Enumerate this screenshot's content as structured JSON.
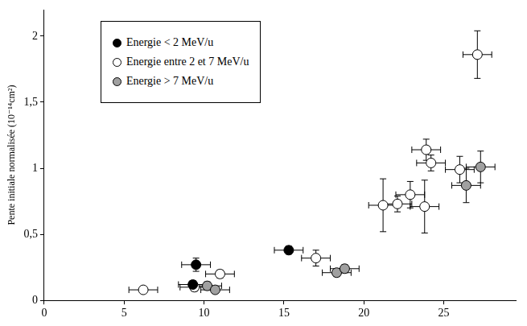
{
  "chart_data": {
    "type": "scatter",
    "y_label": "Pente initiale normalisée (10⁻¹⁴cm²)",
    "xlim": [
      0,
      29.5
    ],
    "xticks": [
      0,
      5,
      10,
      15,
      20,
      25
    ],
    "ylim": [
      0,
      2.2
    ],
    "yticks": [
      0,
      {
        "value": 0.5,
        "label": "0,5"
      },
      1,
      {
        "value": 1.5,
        "label": "1,5"
      },
      2
    ],
    "grid": false,
    "legend": "upper left",
    "series": [
      {
        "name": "Energie < 2 MeV/u",
        "color": "#000000",
        "marker": "circle",
        "x": [
          9.5,
          9.3,
          15.3
        ],
        "values": [
          0.27,
          0.12,
          0.38
        ],
        "xerr": [
          0.9,
          0.9,
          0.9
        ],
        "yerr": [
          0.05,
          0.03,
          0.03
        ]
      },
      {
        "name": "Energie entre 2 et 7 MeV/u",
        "color": "#ffffff",
        "marker": "circle",
        "x": [
          6.2,
          9.4,
          11.0,
          17.0,
          21.2,
          22.1,
          22.9,
          23.8,
          23.9,
          24.2,
          26.0,
          27.1
        ],
        "values": [
          0.08,
          0.1,
          0.2,
          0.32,
          0.72,
          0.73,
          0.8,
          0.71,
          1.14,
          1.04,
          0.99,
          1.86
        ],
        "xerr": [
          0.9,
          0.9,
          0.9,
          0.9,
          0.9,
          0.9,
          0.9,
          0.9,
          0.9,
          0.9,
          0.9,
          0.9
        ],
        "yerr": [
          0.02,
          0.03,
          0.03,
          0.06,
          0.2,
          0.06,
          0.1,
          0.2,
          0.08,
          0.06,
          0.1,
          0.18
        ]
      },
      {
        "name": "Energie > 7 MeV/u",
        "color": "#a0a0a0",
        "marker": "circle",
        "x": [
          10.2,
          10.7,
          18.3,
          18.8,
          26.4,
          27.3
        ],
        "values": [
          0.11,
          0.08,
          0.21,
          0.24,
          0.87,
          1.01
        ],
        "xerr": [
          0.9,
          0.9,
          0.9,
          0.9,
          0.9,
          0.9
        ],
        "yerr": [
          0.03,
          0.02,
          0.03,
          0.03,
          0.13,
          0.12
        ]
      }
    ]
  }
}
